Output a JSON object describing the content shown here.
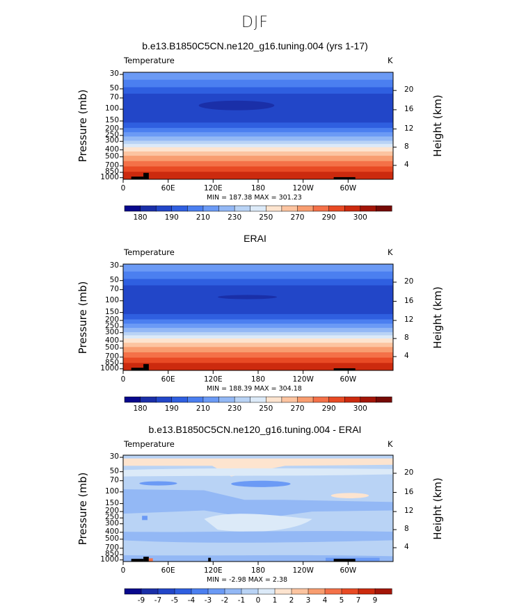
{
  "main_title": "DJF",
  "chart_data": [
    {
      "type": "contour",
      "title": "b.e13.B1850C5CN.ne120_g16.tuning.004 (yrs 1-17)",
      "variable": "Temperature",
      "units": "K",
      "ylabel": "Pressure (mb)",
      "ylabel_right": "Height (km)",
      "stats": "MIN = 187.38  MAX = 301.23",
      "x_ticks": [
        "0",
        "60E",
        "120E",
        "180",
        "120W",
        "60W"
      ],
      "y_ticks": [
        "30",
        "50",
        "70",
        "100",
        "150",
        "200",
        "250",
        "300",
        "400",
        "500",
        "700",
        "850",
        "1000"
      ],
      "y_ticks_right": [
        "20",
        "16",
        "12",
        "8",
        "4"
      ],
      "colorbar_labels": [
        "180",
        "190",
        "210",
        "230",
        "250",
        "270",
        "290",
        "300"
      ],
      "colorbar_colors": [
        "#08088c",
        "#1a2fa8",
        "#2246c8",
        "#2f5fe0",
        "#4b7ff0",
        "#6b9af5",
        "#93b8f5",
        "#b9d3f5",
        "#dceaf8",
        "#fde4cf",
        "#fcc4a0",
        "#f89d70",
        "#f47148",
        "#e84a24",
        "#cc2a0e",
        "#a31508",
        "#760a05"
      ]
    },
    {
      "type": "contour",
      "title": "ERAI",
      "variable": "Temperature",
      "units": "K",
      "ylabel": "Pressure (mb)",
      "ylabel_right": "Height (km)",
      "stats": "MIN = 188.39  MAX = 304.18",
      "x_ticks": [
        "0",
        "60E",
        "120E",
        "180",
        "120W",
        "60W"
      ],
      "y_ticks": [
        "30",
        "50",
        "70",
        "100",
        "150",
        "200",
        "250",
        "300",
        "400",
        "500",
        "700",
        "850",
        "1000"
      ],
      "y_ticks_right": [
        "20",
        "16",
        "12",
        "8",
        "4"
      ],
      "colorbar_labels": [
        "180",
        "190",
        "210",
        "230",
        "250",
        "270",
        "290",
        "300"
      ],
      "colorbar_colors": [
        "#08088c",
        "#1a2fa8",
        "#2246c8",
        "#2f5fe0",
        "#4b7ff0",
        "#6b9af5",
        "#93b8f5",
        "#b9d3f5",
        "#dceaf8",
        "#fde4cf",
        "#fcc4a0",
        "#f89d70",
        "#f47148",
        "#e84a24",
        "#cc2a0e",
        "#a31508",
        "#760a05"
      ]
    },
    {
      "type": "contour",
      "title": "b.e13.B1850C5CN.ne120_g16.tuning.004 - ERAI",
      "variable": "Temperature",
      "units": "K",
      "ylabel": "Pressure (mb)",
      "ylabel_right": "Height (km)",
      "stats": "MIN =   -2.98  MAX =    2.38",
      "x_ticks": [
        "0",
        "60E",
        "120E",
        "180",
        "120W",
        "60W"
      ],
      "y_ticks": [
        "30",
        "50",
        "70",
        "100",
        "150",
        "200",
        "250",
        "300",
        "400",
        "500",
        "700",
        "850",
        "1000"
      ],
      "y_ticks_right": [
        "20",
        "16",
        "12",
        "8",
        "4"
      ],
      "colorbar_labels": [
        "-9",
        "-7",
        "-5",
        "-4",
        "-3",
        "-2",
        "-1",
        "0",
        "1",
        "2",
        "3",
        "4",
        "5",
        "7",
        "9"
      ],
      "colorbar_colors": [
        "#08088c",
        "#1a2fa8",
        "#2246c8",
        "#2f5fe0",
        "#4b7ff0",
        "#6b9af5",
        "#93b8f5",
        "#b9d3f5",
        "#dceaf8",
        "#fde4cf",
        "#fcc4a0",
        "#f89d70",
        "#f47148",
        "#e84a24",
        "#cc2a0e",
        "#a31508"
      ]
    }
  ]
}
